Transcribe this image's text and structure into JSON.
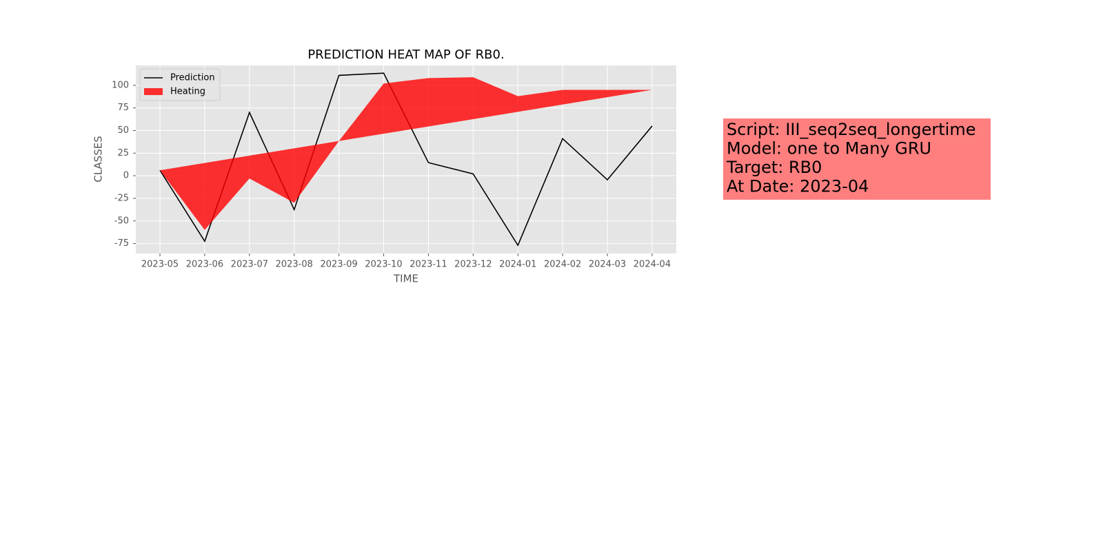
{
  "chart_data": {
    "type": "line",
    "title": "PREDICTION HEAT MAP OF RB0.",
    "x_label": "TIME",
    "y_label": "CLASSES",
    "categories": [
      "2023-05",
      "2023-06",
      "2023-07",
      "2023-08",
      "2023-09",
      "2023-10",
      "2023-11",
      "2023-12",
      "2024-01",
      "2024-02",
      "2024-03",
      "2024-04"
    ],
    "series": [
      {
        "name": "Prediction",
        "color": "#000000",
        "values": [
          6,
          -72.5,
          70,
          -37.5,
          111,
          113.5,
          14.5,
          2,
          -77,
          41,
          -4.5,
          55
        ]
      },
      {
        "name": "Heating",
        "color": "#ff0000",
        "fill": true,
        "values": [
          6,
          -60,
          -3,
          -30,
          38.4,
          102,
          108,
          109,
          88,
          95,
          95,
          95
        ],
        "base": [
          6,
          14.1,
          22.2,
          30.3,
          38.4,
          46.5,
          54.5,
          62.6,
          70.7,
          78.8,
          86.9,
          95
        ]
      }
    ],
    "xlim": [
      -0.54,
      11.54
    ],
    "ylim": [
      -86,
      122
    ],
    "yticks": [
      -75,
      -50,
      -25,
      0,
      25,
      50,
      75,
      100
    ],
    "grid": true,
    "legend": "upper left",
    "annotation": {
      "lines": [
        "Script: III_seq2seq_longertime",
        "Model: one to Many GRU",
        "Target: RB0",
        "At Date: 2023-04"
      ],
      "color": "#ff7f7f"
    }
  }
}
